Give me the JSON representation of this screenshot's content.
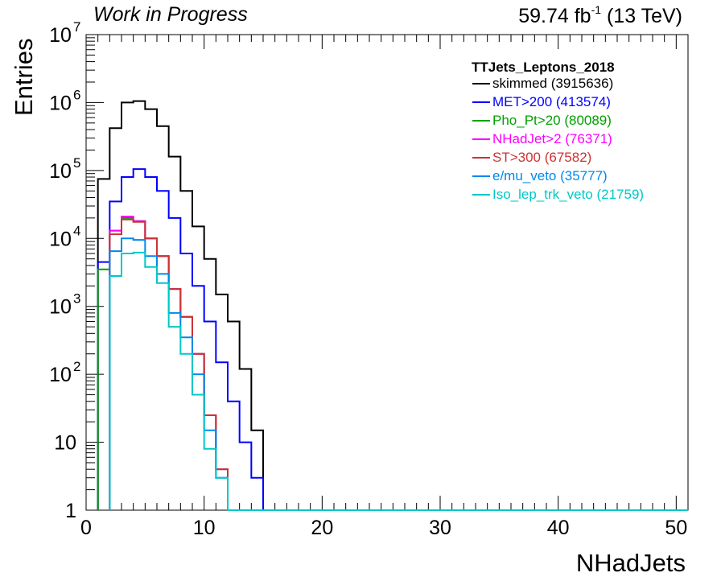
{
  "header": {
    "status_text": "Work in Progress",
    "lumi_value": "59.74 fb",
    "lumi_exp": "-1",
    "energy": " (13 TeV)"
  },
  "chart_data": {
    "type": "line",
    "xlabel": "NHadJets",
    "ylabel": "Entries",
    "xlim": [
      0,
      51
    ],
    "ylim": [
      1,
      10000000
    ],
    "y_scale": "log",
    "grid": false,
    "legend_placement": "top-right",
    "legend_title": "TTJets_Leptons_2018",
    "x_ticks": [
      "0",
      "10",
      "20",
      "30",
      "40",
      "50"
    ],
    "y_ticks": [
      {
        "value": 1,
        "label": "1",
        "exp": ""
      },
      {
        "value": 10,
        "label": "10",
        "exp": ""
      },
      {
        "value": 100,
        "label": "10",
        "exp": "2"
      },
      {
        "value": 1000,
        "label": "10",
        "exp": "3"
      },
      {
        "value": 10000,
        "label": "10",
        "exp": "4"
      },
      {
        "value": 100000,
        "label": "10",
        "exp": "5"
      },
      {
        "value": 1000000,
        "label": "10",
        "exp": "6"
      },
      {
        "value": 10000000,
        "label": "10",
        "exp": "7"
      }
    ],
    "bin_width": 1,
    "series": [
      {
        "name": "skimmed (3915636)",
        "color": "#000000",
        "first_bin": 1,
        "values": [
          75000,
          420000,
          1000000,
          1050000,
          800000,
          450000,
          160000,
          50000,
          15000,
          5000,
          1500,
          600,
          120,
          15,
          0
        ]
      },
      {
        "name": "MET>200 (413574)",
        "color": "#0000ff",
        "first_bin": 1,
        "values": [
          4500,
          35000,
          80000,
          105000,
          80000,
          50000,
          20000,
          6000,
          2000,
          600,
          150,
          40,
          10,
          3,
          0
        ]
      },
      {
        "name": "Pho_Pt>20 (80089)",
        "color": "#00a000",
        "first_bin": 1,
        "values": [
          3500,
          13000,
          20000,
          18000,
          10000,
          5500,
          1800,
          700,
          200,
          25,
          4,
          0,
          0,
          0,
          0
        ]
      },
      {
        "name": "NHadJet>2 (76371)",
        "color": "#ff00ff",
        "first_bin": 2,
        "values": [
          13000,
          21000,
          18000,
          10000,
          5500,
          1800,
          700,
          200,
          25,
          4,
          0,
          0,
          0,
          0
        ]
      },
      {
        "name": "ST>300 (67582)",
        "color": "#cc3333",
        "first_bin": 2,
        "values": [
          11500,
          19000,
          17500,
          10000,
          5500,
          1800,
          700,
          200,
          25,
          4,
          0,
          0,
          0,
          0
        ]
      },
      {
        "name": "e/mu_veto (35777)",
        "color": "#0088ee",
        "first_bin": 2,
        "values": [
          6500,
          10000,
          9500,
          5500,
          3000,
          800,
          350,
          100,
          15,
          3,
          0,
          0,
          0,
          0
        ]
      },
      {
        "name": "Iso_lep_trk_veto (21759)",
        "color": "#00c8c8",
        "first_bin": 2,
        "values": [
          2800,
          6000,
          6200,
          3800,
          2200,
          500,
          200,
          50,
          8,
          3,
          0,
          0,
          0,
          0
        ]
      }
    ]
  }
}
